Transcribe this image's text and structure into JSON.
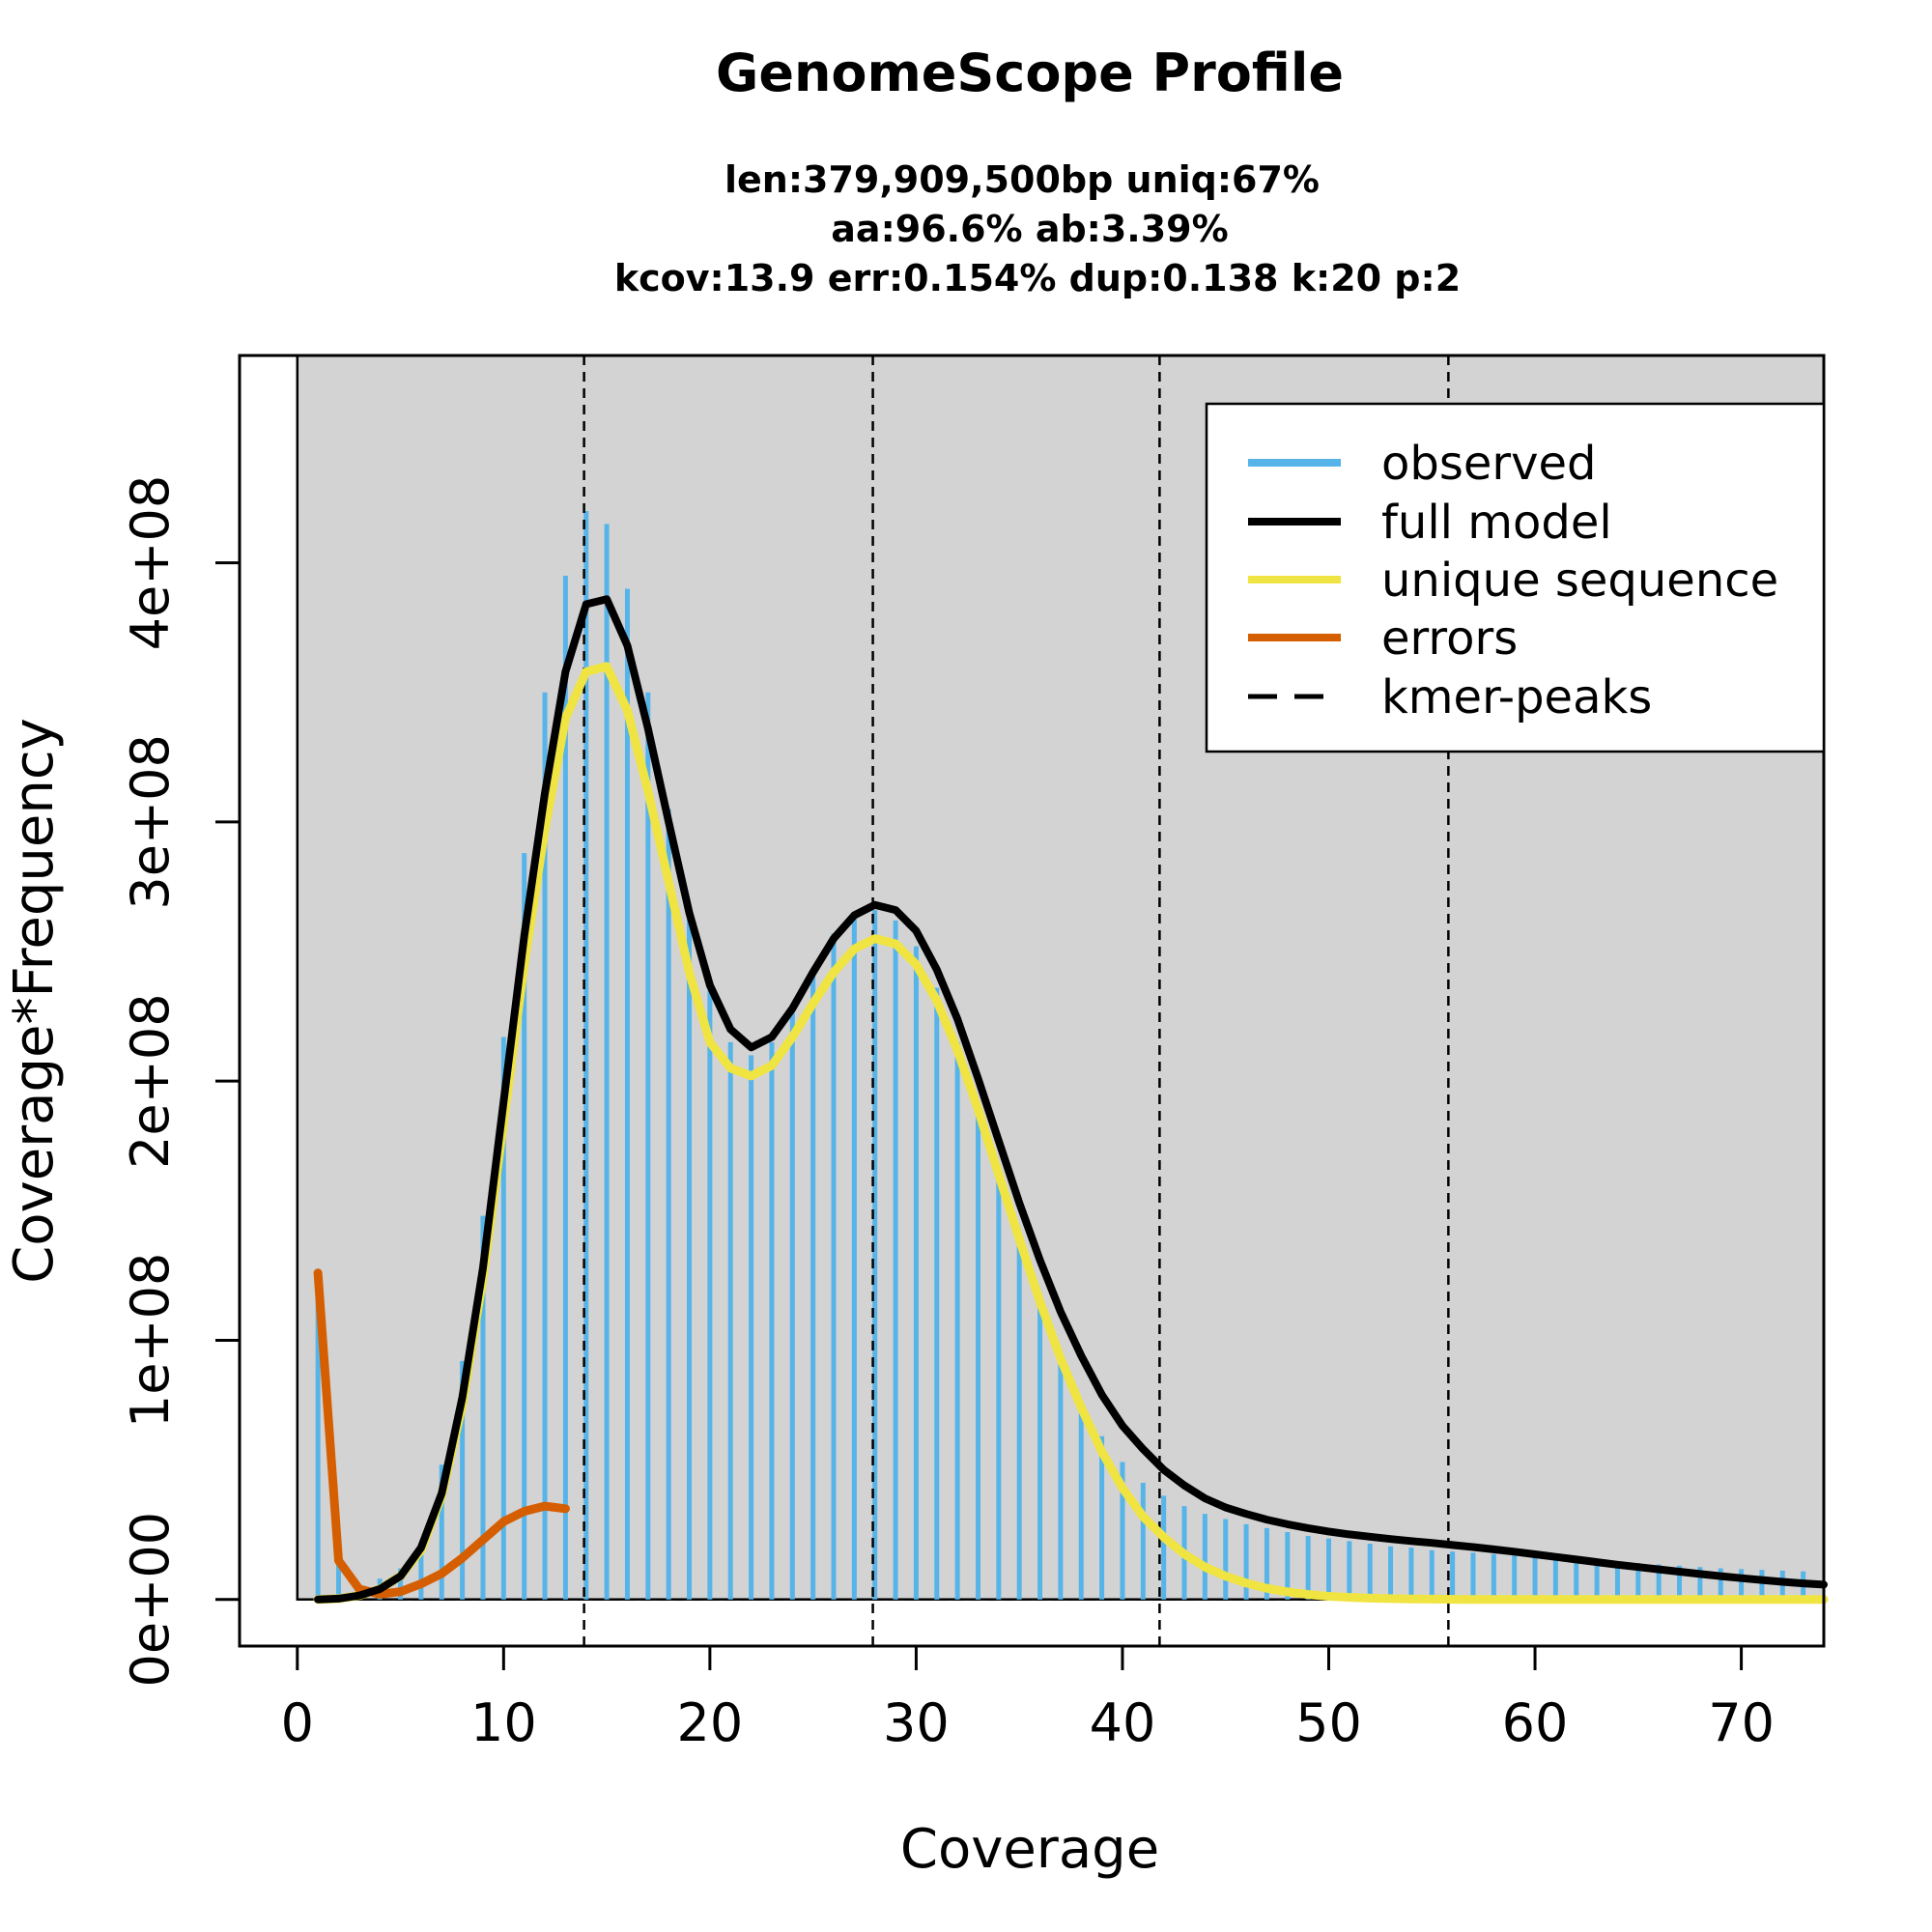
{
  "chart_data": {
    "type": "line",
    "title": "GenomeScope Profile",
    "subtitle_lines": [
      "len:379,909,500bp uniq:67%",
      "aa:96.6% ab:3.39%",
      "kcov:13.9 err:0.154%  dup:0.138  k:20 p:2"
    ],
    "xlabel": "Coverage",
    "ylabel": "Coverage*Frequency",
    "xlim": [
      -2.8,
      74
    ],
    "ylim": [
      -18000000,
      480000000
    ],
    "x_ticks": [
      0,
      10,
      20,
      30,
      40,
      50,
      60,
      70
    ],
    "x_tick_labels": [
      "0",
      "10",
      "20",
      "30",
      "40",
      "50",
      "60",
      "70"
    ],
    "y_ticks": [
      0,
      100000000,
      200000000,
      300000000,
      400000000
    ],
    "y_tick_labels": [
      "0e+00",
      "1e+08",
      "2e+08",
      "3e+08",
      "4e+08"
    ],
    "kmer_peaks": [
      13.9,
      27.9,
      41.8,
      55.8
    ],
    "legend_position": "top-right",
    "legend": [
      "observed",
      "full model",
      "unique sequence",
      "errors",
      "kmer-peaks"
    ],
    "colors": {
      "observed": "#56B4E9",
      "full_model": "#000000",
      "unique_sequence": "#F0E442",
      "errors": "#D55E00",
      "plot_background": "#D3D3D3"
    },
    "observed": {
      "x": [
        1,
        2,
        3,
        4,
        5,
        6,
        7,
        8,
        9,
        10,
        11,
        12,
        13,
        14,
        15,
        16,
        17,
        18,
        19,
        20,
        21,
        22,
        23,
        24,
        25,
        26,
        27,
        28,
        29,
        30,
        31,
        32,
        33,
        34,
        35,
        36,
        37,
        38,
        39,
        40,
        41,
        42,
        43,
        44,
        45,
        46,
        47,
        48,
        49,
        50,
        51,
        52,
        53,
        54,
        55,
        56,
        57,
        58,
        59,
        60,
        61,
        62,
        63,
        64,
        65,
        66,
        67,
        68,
        69,
        70,
        71,
        72,
        73
      ],
      "y": [
        125000000,
        15000000,
        5000000,
        8000000,
        12000000,
        22000000,
        52000000,
        92000000,
        148000000,
        217000000,
        288000000,
        350000000,
        395000000,
        420000000,
        415000000,
        390000000,
        350000000,
        305000000,
        265000000,
        235000000,
        215000000,
        210000000,
        215000000,
        228000000,
        243000000,
        257000000,
        264000000,
        266000000,
        262000000,
        252000000,
        236000000,
        215000000,
        191000000,
        165000000,
        139000000,
        114000000,
        93000000,
        76000000,
        63000000,
        53000000,
        45000000,
        40000000,
        36000000,
        33000000,
        31000000,
        29000000,
        27500000,
        26000000,
        24500000,
        23500000,
        22500000,
        21500000,
        20500000,
        20000000,
        19000000,
        18500000,
        18000000,
        17500000,
        17000000,
        16500000,
        16000000,
        15500000,
        15000000,
        14500000,
        14000000,
        13500000,
        13000000,
        12500000,
        12000000,
        11700000,
        11400000,
        11100000,
        10800000
      ]
    },
    "full_model": {
      "x": [
        1,
        2,
        3,
        4,
        5,
        6,
        7,
        8,
        9,
        10,
        11,
        12,
        13,
        14,
        15,
        16,
        17,
        18,
        19,
        20,
        21,
        22,
        23,
        24,
        25,
        26,
        27,
        28,
        29,
        30,
        31,
        32,
        33,
        34,
        35,
        36,
        37,
        38,
        39,
        40,
        41,
        42,
        43,
        44,
        45,
        46,
        47,
        48,
        49,
        50,
        51,
        52,
        53,
        54,
        55,
        56,
        57,
        58,
        59,
        60,
        61,
        62,
        63,
        64,
        65,
        66,
        67,
        68,
        69,
        70,
        71,
        72,
        73,
        74
      ],
      "y": [
        0,
        300000,
        1500000,
        4000000,
        9000000,
        20000000,
        41000000,
        78000000,
        128000000,
        192000000,
        256000000,
        311000000,
        358000000,
        384000000,
        386000000,
        368000000,
        336000000,
        300000000,
        265000000,
        237000000,
        220000000,
        213000000,
        217000000,
        228000000,
        242000000,
        255000000,
        264000000,
        268000000,
        266000000,
        258000000,
        243000000,
        224000000,
        201000000,
        177000000,
        153000000,
        131000000,
        111000000,
        94000000,
        79000000,
        67000000,
        58000000,
        50000000,
        44000000,
        39000000,
        35500000,
        33000000,
        30800000,
        29000000,
        27500000,
        26200000,
        25100000,
        24200000,
        23300000,
        22500000,
        21800000,
        21000000,
        20200000,
        19300000,
        18400000,
        17400000,
        16400000,
        15400000,
        14400000,
        13400000,
        12500000,
        11600000,
        10700000,
        9800000,
        9000000,
        8200000,
        7500000,
        6800000,
        6200000,
        5700000
      ]
    },
    "unique_sequence": {
      "x": [
        1,
        2,
        3,
        4,
        5,
        6,
        7,
        8,
        9,
        10,
        11,
        12,
        13,
        14,
        15,
        16,
        17,
        18,
        19,
        20,
        21,
        22,
        23,
        24,
        25,
        26,
        27,
        28,
        29,
        30,
        31,
        32,
        33,
        34,
        35,
        36,
        37,
        38,
        39,
        40,
        41,
        42,
        43,
        44,
        45,
        46,
        47,
        48,
        49,
        50,
        51,
        52,
        53,
        54,
        55,
        56,
        57,
        58,
        59,
        60,
        61,
        62,
        63,
        64,
        65,
        66,
        67,
        68,
        69,
        70,
        71,
        72,
        73,
        74
      ],
      "y": [
        0,
        300000,
        1500000,
        4000000,
        9000000,
        19000000,
        40000000,
        75000000,
        124000000,
        184000000,
        245000000,
        297000000,
        340000000,
        358000000,
        360000000,
        343000000,
        312000000,
        277000000,
        242000000,
        215000000,
        205000000,
        202000000,
        206000000,
        217000000,
        230000000,
        242000000,
        251000000,
        255000000,
        253000000,
        245000000,
        231000000,
        212000000,
        189000000,
        164000000,
        139000000,
        115000000,
        93000000,
        74000000,
        57000000,
        43000000,
        32000000,
        24000000,
        17500000,
        12500000,
        9000000,
        6300000,
        4300000,
        2900000,
        1900000,
        1200000,
        800000,
        500000,
        300000,
        200000,
        100000,
        50000,
        20000,
        10000,
        5000,
        2000,
        1000,
        500,
        0,
        0,
        0,
        0,
        0,
        0,
        0,
        0,
        0,
        0,
        0,
        0
      ]
    },
    "errors": {
      "x": [
        1,
        2,
        3,
        4,
        5,
        6,
        7,
        8,
        9,
        10,
        11,
        12,
        13
      ],
      "y": [
        126000000,
        15000000,
        4000000,
        2000000,
        3000000,
        6000000,
        10000000,
        16000000,
        23000000,
        30000000,
        34000000,
        36000000,
        35000000
      ]
    }
  }
}
